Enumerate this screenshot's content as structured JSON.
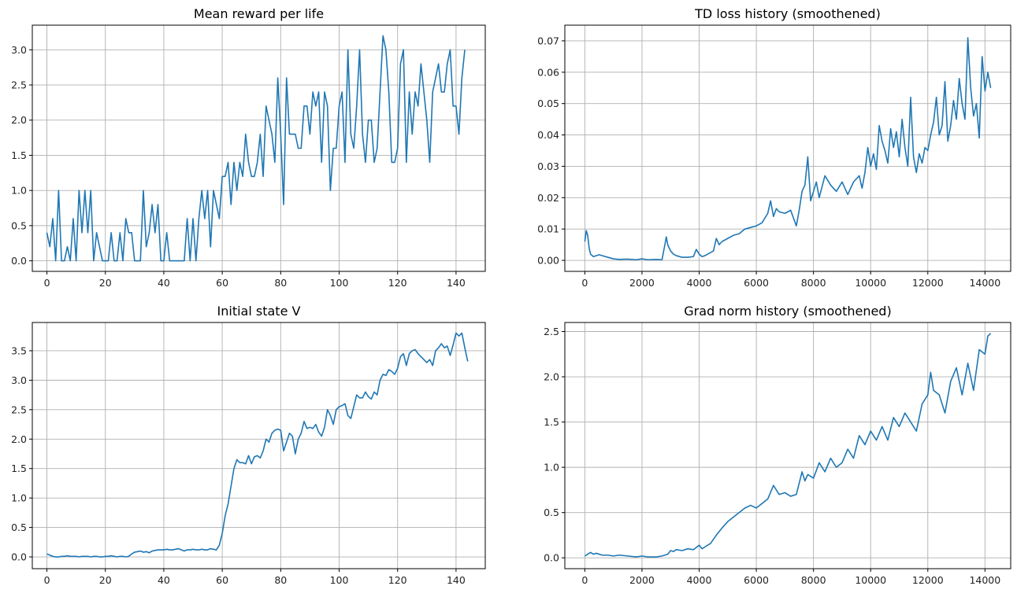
{
  "chart_data": [
    {
      "type": "line",
      "title": "Mean reward per life",
      "xlim": [
        -5,
        150
      ],
      "ylim": [
        -0.15,
        3.35
      ],
      "xticks": [
        0,
        20,
        40,
        60,
        80,
        100,
        120,
        140
      ],
      "yticks": [
        0.0,
        0.5,
        1.0,
        1.5,
        2.0,
        2.5,
        3.0
      ],
      "ytick_format": "1",
      "grid": true,
      "color": "#1f77b4",
      "x_start": 0,
      "x_step": 1,
      "values": [
        0.4,
        0.2,
        0.6,
        0,
        1,
        0,
        0,
        0.2,
        0,
        0.6,
        0,
        1,
        0.4,
        1,
        0.4,
        1,
        0,
        0.4,
        0.2,
        0,
        0,
        0,
        0.4,
        0,
        0,
        0.4,
        0,
        0.6,
        0.4,
        0.4,
        0,
        0,
        0,
        1,
        0.2,
        0.4,
        0.8,
        0.4,
        0.8,
        0,
        0,
        0.4,
        0,
        0,
        0,
        0,
        0,
        0,
        0.6,
        0,
        0.6,
        0,
        0.6,
        1,
        0.6,
        1,
        0.2,
        1,
        0.8,
        0.6,
        1.2,
        1.2,
        1.4,
        0.8,
        1.4,
        1,
        1.4,
        1.2,
        1.8,
        1.4,
        1.2,
        1.2,
        1.4,
        1.8,
        1.2,
        2.2,
        2,
        1.8,
        1.4,
        2.6,
        1.8,
        0.8,
        2.6,
        1.8,
        1.8,
        1.8,
        1.6,
        1.6,
        2.2,
        2.2,
        1.8,
        2.4,
        2.2,
        2.4,
        1.4,
        2.4,
        2.2,
        1,
        1.6,
        1.6,
        2.2,
        2.4,
        1.4,
        3,
        1.8,
        1.6,
        2.2,
        3,
        1.8,
        1.4,
        2,
        2,
        1.4,
        1.6,
        2.4,
        3.2,
        3,
        2.4,
        1.4,
        1.4,
        1.6,
        2.8,
        3,
        1.4,
        2.4,
        1.8,
        2.4,
        2.2,
        2.8,
        2.4,
        2,
        1.4,
        2.4,
        2.6,
        2.8,
        2.4,
        2.4,
        2.8,
        3,
        2.2,
        2.2,
        1.8,
        2.6,
        3
      ]
    },
    {
      "type": "line",
      "title": "TD loss history (smoothened)",
      "xlim": [
        -700,
        14900
      ],
      "ylim": [
        -0.0035,
        0.075
      ],
      "xticks": [
        0,
        2000,
        4000,
        6000,
        8000,
        10000,
        12000,
        14000
      ],
      "yticks": [
        0.0,
        0.01,
        0.02,
        0.03,
        0.04,
        0.05,
        0.06,
        0.07
      ],
      "ytick_format": "2",
      "grid": true,
      "color": "#1f77b4",
      "x": [
        0,
        50,
        100,
        150,
        200,
        300,
        500,
        800,
        1000,
        1200,
        1500,
        1800,
        2000,
        2200,
        2500,
        2700,
        2800,
        2850,
        2900,
        3000,
        3100,
        3200,
        3400,
        3600,
        3800,
        3900,
        4000,
        4100,
        4200,
        4300,
        4400,
        4500,
        4600,
        4700,
        4800,
        5000,
        5200,
        5400,
        5600,
        5800,
        6000,
        6200,
        6400,
        6500,
        6600,
        6700,
        6800,
        7000,
        7200,
        7400,
        7500,
        7600,
        7700,
        7800,
        7850,
        7900,
        8000,
        8100,
        8200,
        8400,
        8600,
        8800,
        9000,
        9200,
        9400,
        9600,
        9700,
        9800,
        9900,
        10000,
        10100,
        10200,
        10300,
        10400,
        10500,
        10600,
        10700,
        10800,
        10900,
        11000,
        11100,
        11200,
        11300,
        11400,
        11500,
        11600,
        11700,
        11800,
        11900,
        12000,
        12100,
        12200,
        12300,
        12400,
        12500,
        12600,
        12700,
        12800,
        12900,
        13000,
        13100,
        13200,
        13300,
        13400,
        13500,
        13600,
        13700,
        13800,
        13900,
        14000,
        14100,
        14200
      ],
      "values": [
        0.006,
        0.0095,
        0.008,
        0.004,
        0.002,
        0.0012,
        0.0018,
        0.001,
        0.0005,
        0.0003,
        0.0004,
        0.0002,
        0.0005,
        0.0002,
        0.0003,
        0.0002,
        0.005,
        0.0075,
        0.005,
        0.003,
        0.002,
        0.0015,
        0.001,
        0.001,
        0.0012,
        0.0035,
        0.002,
        0.0012,
        0.0015,
        0.002,
        0.0025,
        0.003,
        0.007,
        0.005,
        0.006,
        0.007,
        0.008,
        0.0085,
        0.01,
        0.0105,
        0.011,
        0.012,
        0.015,
        0.019,
        0.014,
        0.0165,
        0.0155,
        0.015,
        0.016,
        0.011,
        0.016,
        0.022,
        0.024,
        0.033,
        0.026,
        0.019,
        0.022,
        0.025,
        0.02,
        0.027,
        0.024,
        0.022,
        0.025,
        0.021,
        0.025,
        0.027,
        0.023,
        0.028,
        0.036,
        0.03,
        0.034,
        0.029,
        0.043,
        0.038,
        0.035,
        0.031,
        0.042,
        0.036,
        0.041,
        0.033,
        0.045,
        0.036,
        0.03,
        0.052,
        0.033,
        0.028,
        0.034,
        0.031,
        0.036,
        0.035,
        0.04,
        0.044,
        0.052,
        0.04,
        0.043,
        0.057,
        0.038,
        0.043,
        0.051,
        0.045,
        0.058,
        0.05,
        0.045,
        0.071,
        0.055,
        0.046,
        0.05,
        0.039,
        0.065,
        0.054,
        0.06,
        0.055
      ]
    },
    {
      "type": "line",
      "title": "Initial state V",
      "xlim": [
        -5,
        150
      ],
      "ylim": [
        -0.2,
        3.98
      ],
      "xticks": [
        0,
        20,
        40,
        60,
        80,
        100,
        120,
        140
      ],
      "yticks": [
        0.0,
        0.5,
        1.0,
        1.5,
        2.0,
        2.5,
        3.0,
        3.5
      ],
      "ytick_format": "1",
      "grid": true,
      "color": "#1f77b4",
      "x_start": 0,
      "x_step": 1,
      "values": [
        0.05,
        0.03,
        0.01,
        0,
        0,
        0.01,
        0.01,
        0.02,
        0.01,
        0.01,
        0.01,
        0,
        0.01,
        0.01,
        0.01,
        0,
        0.01,
        0.01,
        0,
        0,
        0.01,
        0.01,
        0.02,
        0.01,
        0,
        0.01,
        0.01,
        0,
        0.01,
        0.05,
        0.08,
        0.09,
        0.1,
        0.08,
        0.09,
        0.07,
        0.1,
        0.11,
        0.12,
        0.12,
        0.12,
        0.13,
        0.12,
        0.12,
        0.13,
        0.14,
        0.12,
        0.1,
        0.12,
        0.12,
        0.13,
        0.12,
        0.12,
        0.13,
        0.12,
        0.12,
        0.14,
        0.13,
        0.12,
        0.2,
        0.4,
        0.7,
        0.9,
        1.2,
        1.5,
        1.65,
        1.6,
        1.6,
        1.58,
        1.72,
        1.58,
        1.7,
        1.72,
        1.68,
        1.8,
        2.0,
        1.95,
        2.1,
        2.15,
        2.17,
        2.15,
        1.8,
        1.95,
        2.1,
        2.05,
        1.75,
        2.0,
        2.1,
        2.3,
        2.18,
        2.2,
        2.18,
        2.25,
        2.12,
        2.05,
        2.2,
        2.5,
        2.4,
        2.25,
        2.5,
        2.55,
        2.57,
        2.6,
        2.4,
        2.35,
        2.55,
        2.75,
        2.7,
        2.7,
        2.8,
        2.72,
        2.68,
        2.8,
        2.75,
        3.0,
        3.1,
        3.08,
        3.18,
        3.15,
        3.1,
        3.2,
        3.4,
        3.45,
        3.25,
        3.45,
        3.5,
        3.52,
        3.45,
        3.4,
        3.35,
        3.3,
        3.35,
        3.25,
        3.5,
        3.55,
        3.62,
        3.55,
        3.58,
        3.42,
        3.6,
        3.8,
        3.75,
        3.8,
        3.55,
        3.32
      ]
    },
    {
      "type": "line",
      "title": "Grad norm history (smoothened)",
      "xlim": [
        -700,
        14900
      ],
      "ylim": [
        -0.12,
        2.6
      ],
      "xticks": [
        0,
        2000,
        4000,
        6000,
        8000,
        10000,
        12000,
        14000
      ],
      "yticks": [
        0.0,
        0.5,
        1.0,
        1.5,
        2.0,
        2.5
      ],
      "ytick_format": "1",
      "grid": true,
      "color": "#1f77b4",
      "x": [
        0,
        100,
        200,
        300,
        400,
        600,
        800,
        1000,
        1200,
        1500,
        1800,
        2000,
        2200,
        2500,
        2700,
        2900,
        3000,
        3100,
        3200,
        3400,
        3600,
        3800,
        4000,
        4100,
        4200,
        4400,
        4600,
        4800,
        5000,
        5200,
        5400,
        5600,
        5800,
        6000,
        6200,
        6400,
        6600,
        6800,
        7000,
        7200,
        7400,
        7600,
        7700,
        7800,
        8000,
        8200,
        8400,
        8600,
        8800,
        9000,
        9200,
        9400,
        9600,
        9800,
        10000,
        10200,
        10400,
        10600,
        10800,
        11000,
        11200,
        11400,
        11600,
        11800,
        12000,
        12100,
        12200,
        12400,
        12600,
        12800,
        13000,
        13200,
        13400,
        13600,
        13800,
        14000,
        14100,
        14200
      ],
      "values": [
        0.02,
        0.04,
        0.06,
        0.04,
        0.05,
        0.03,
        0.03,
        0.02,
        0.03,
        0.02,
        0.01,
        0.02,
        0.01,
        0.01,
        0.02,
        0.04,
        0.08,
        0.07,
        0.09,
        0.08,
        0.1,
        0.09,
        0.14,
        0.1,
        0.12,
        0.16,
        0.25,
        0.33,
        0.4,
        0.45,
        0.5,
        0.55,
        0.58,
        0.55,
        0.6,
        0.65,
        0.8,
        0.7,
        0.72,
        0.68,
        0.7,
        0.95,
        0.85,
        0.92,
        0.88,
        1.05,
        0.95,
        1.1,
        1.0,
        1.05,
        1.2,
        1.1,
        1.35,
        1.25,
        1.4,
        1.3,
        1.45,
        1.3,
        1.55,
        1.45,
        1.6,
        1.5,
        1.4,
        1.7,
        1.8,
        2.05,
        1.85,
        1.8,
        1.6,
        1.95,
        2.1,
        1.8,
        2.15,
        1.85,
        2.3,
        2.25,
        2.45,
        2.48
      ]
    }
  ]
}
